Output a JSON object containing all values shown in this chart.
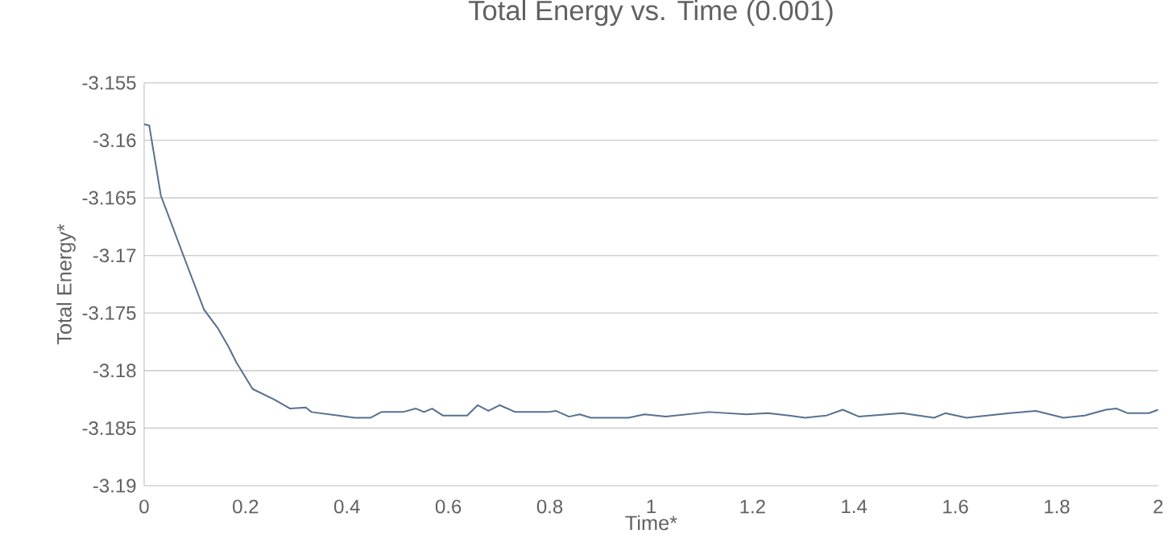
{
  "chart_data": {
    "type": "line",
    "title": "Total Energy vs. Time (0.001)",
    "xlabel": "Time*",
    "ylabel": "Total Energy*",
    "xlim": [
      0,
      2
    ],
    "xticks": [
      0,
      0.2,
      0.4,
      0.6,
      0.8,
      1,
      1.2,
      1.4,
      1.6,
      1.8,
      2
    ],
    "ylim": [
      -3.19,
      -3.155
    ],
    "yticks": [
      -3.19,
      -3.185,
      -3.18,
      -3.175,
      -3.17,
      -3.165,
      -3.16,
      -3.155
    ],
    "grid": "y",
    "legend": false,
    "marker": "none",
    "line_style": "solid",
    "series": [
      {
        "color": "#56708f",
        "x": [
          0,
          0.01,
          0.033,
          0.086,
          0.118,
          0.145,
          0.166,
          0.182,
          0.214,
          0.256,
          0.288,
          0.319,
          0.33,
          0.383,
          0.415,
          0.446,
          0.468,
          0.51,
          0.536,
          0.552,
          0.568,
          0.589,
          0.637,
          0.658,
          0.679,
          0.701,
          0.732,
          0.796,
          0.812,
          0.838,
          0.859,
          0.881,
          0.955,
          0.987,
          1.029,
          1.114,
          1.188,
          1.23,
          1.272,
          1.304,
          1.346,
          1.378,
          1.41,
          1.495,
          1.558,
          1.58,
          1.622,
          1.707,
          1.759,
          1.813,
          1.855,
          1.897,
          1.918,
          1.94,
          1.982,
          2.0
        ],
        "values": [
          -3.1586,
          -3.1587,
          -3.1648,
          -3.171,
          -3.1747,
          -3.1763,
          -3.1779,
          -3.1793,
          -3.1816,
          -3.1825,
          -3.1833,
          -3.1832,
          -3.1836,
          -3.1839,
          -3.1841,
          -3.1841,
          -3.1836,
          -3.1836,
          -3.1833,
          -3.1836,
          -3.1833,
          -3.1839,
          -3.1839,
          -3.183,
          -3.1835,
          -3.183,
          -3.1836,
          -3.1836,
          -3.1835,
          -3.184,
          -3.1838,
          -3.1841,
          -3.1841,
          -3.1838,
          -3.184,
          -3.1836,
          -3.1838,
          -3.1837,
          -3.1839,
          -3.1841,
          -3.1839,
          -3.1834,
          -3.184,
          -3.1837,
          -3.1841,
          -3.1837,
          -3.1841,
          -3.1837,
          -3.1835,
          -3.1841,
          -3.1839,
          -3.1834,
          -3.1833,
          -3.1837,
          -3.1837,
          -3.1834
        ]
      }
    ]
  }
}
